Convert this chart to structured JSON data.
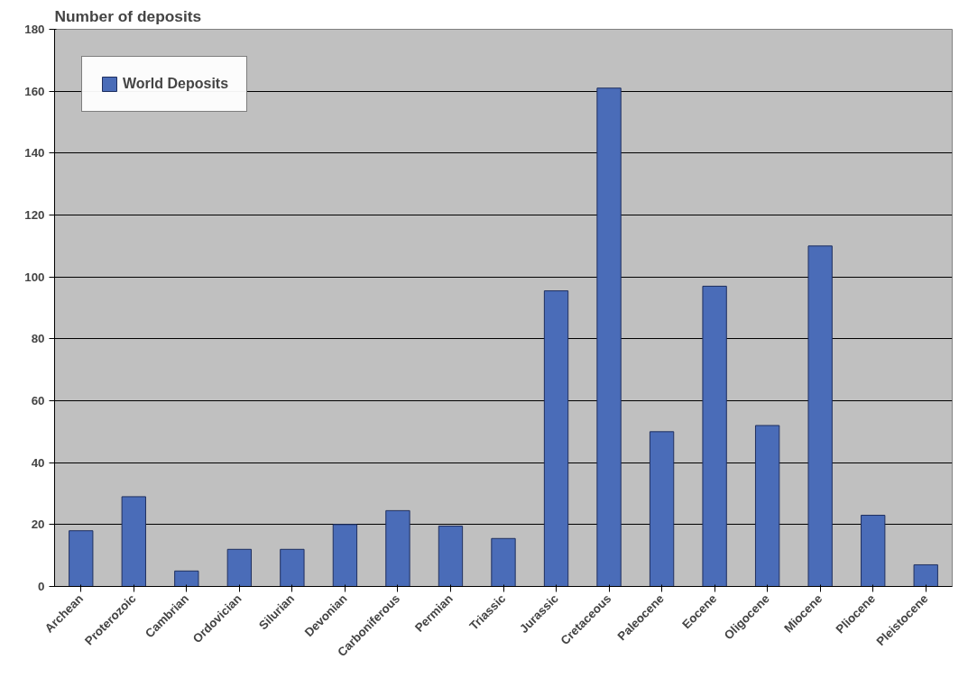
{
  "chart_data": {
    "type": "bar",
    "title": "Number of deposits",
    "categories": [
      "Archean",
      "Proterozoic",
      "Cambrian",
      "Ordovician",
      "Silurian",
      "Devonian",
      "Carboniferous",
      "Permian",
      "Triassic",
      "Jurassic",
      "Cretaceous",
      "Paleocene",
      "Eocene",
      "Oligocene",
      "Miocene",
      "Pliocene",
      "Pleistocene"
    ],
    "series": [
      {
        "name": "World Deposits",
        "color": "#4a6cb8",
        "values": [
          18,
          29,
          5,
          12,
          12,
          20,
          24.5,
          19.5,
          15.5,
          95.5,
          161,
          50,
          97,
          52,
          110,
          23,
          7
        ]
      }
    ],
    "ylim": [
      0,
      180
    ],
    "yticks": [
      0,
      20,
      40,
      60,
      80,
      100,
      120,
      140,
      160,
      180
    ],
    "grid": "y",
    "legend": "top left"
  }
}
